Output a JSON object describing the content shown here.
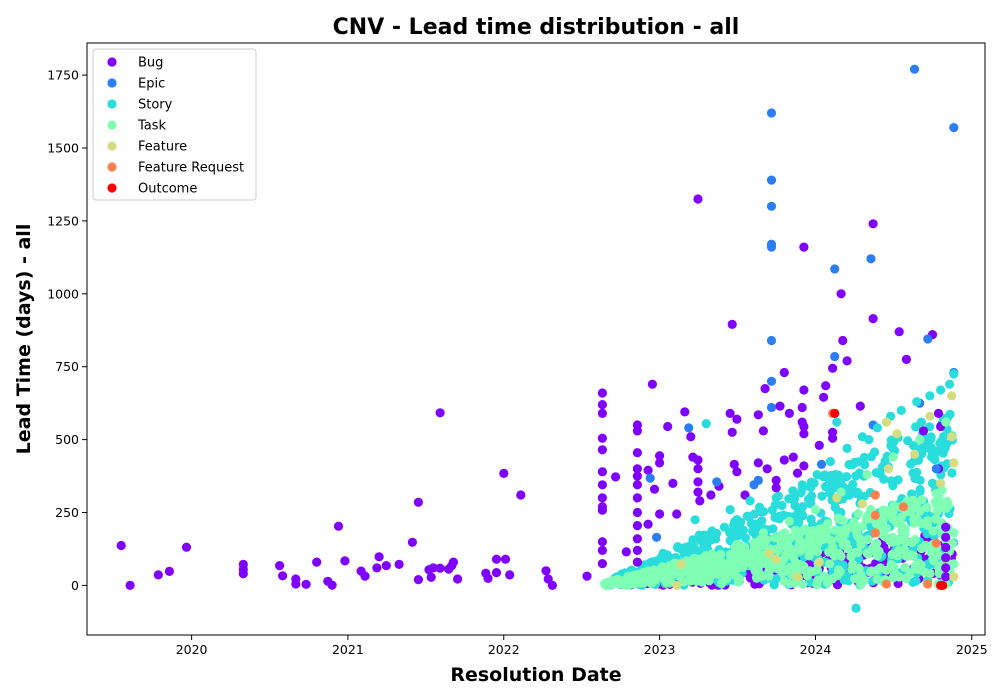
{
  "chart_data": {
    "type": "scatter",
    "title": "CNV - Lead time distribution - all",
    "xlabel": "Resolution Date",
    "ylabel": "Lead Time (days) - all",
    "x_axis_type": "date",
    "xlim": [
      "2019-05-01",
      "2025-02-01"
    ],
    "ylim": [
      -170,
      1860
    ],
    "x_ticks": [
      {
        "value": "2020-01-01",
        "label": "2020"
      },
      {
        "value": "2021-01-01",
        "label": "2021"
      },
      {
        "value": "2022-01-01",
        "label": "2022"
      },
      {
        "value": "2023-01-01",
        "label": "2023"
      },
      {
        "value": "2024-01-01",
        "label": "2024"
      },
      {
        "value": "2025-01-01",
        "label": "2025"
      }
    ],
    "y_ticks": [
      0,
      250,
      500,
      750,
      1000,
      1250,
      1500,
      1750
    ],
    "grid": false,
    "legend": {
      "position": "top-left"
    },
    "series": [
      {
        "name": "Bug",
        "color": "#8000ff",
        "points": [
          [
            "2019-07-20",
            137
          ],
          [
            "2019-08-10",
            0
          ],
          [
            "2019-10-15",
            36
          ],
          [
            "2019-11-10",
            48
          ],
          [
            "2019-12-20",
            131
          ],
          [
            "2020-05-01",
            72
          ],
          [
            "2020-05-01",
            55
          ],
          [
            "2020-05-01",
            40
          ],
          [
            "2020-07-25",
            68
          ],
          [
            "2020-08-01",
            33
          ],
          [
            "2020-09-01",
            22
          ],
          [
            "2020-09-01",
            5
          ],
          [
            "2020-09-25",
            4
          ],
          [
            "2020-10-20",
            80
          ],
          [
            "2020-11-15",
            14
          ],
          [
            "2020-11-25",
            1
          ],
          [
            "2020-12-10",
            203
          ],
          [
            "2020-12-25",
            84
          ],
          [
            "2021-02-01",
            49
          ],
          [
            "2021-02-10",
            32
          ],
          [
            "2021-03-10",
            60
          ],
          [
            "2021-03-15",
            98
          ],
          [
            "2021-04-01",
            68
          ],
          [
            "2021-05-01",
            72
          ],
          [
            "2021-06-01",
            148
          ],
          [
            "2021-06-15",
            285
          ],
          [
            "2021-06-15",
            20
          ],
          [
            "2021-07-10",
            54
          ],
          [
            "2021-07-15",
            28
          ],
          [
            "2021-07-20",
            60
          ],
          [
            "2021-08-05",
            592
          ],
          [
            "2021-08-05",
            59
          ],
          [
            "2021-08-25",
            56
          ],
          [
            "2021-09-01",
            68
          ],
          [
            "2021-09-05",
            80
          ],
          [
            "2021-09-15",
            22
          ],
          [
            "2021-11-20",
            42
          ],
          [
            "2021-11-25",
            24
          ],
          [
            "2021-12-15",
            90
          ],
          [
            "2021-12-15",
            44
          ],
          [
            "2022-01-01",
            384
          ],
          [
            "2022-01-05",
            90
          ],
          [
            "2022-01-15",
            36
          ],
          [
            "2022-02-10",
            310
          ],
          [
            "2022-04-10",
            50
          ],
          [
            "2022-04-15",
            22
          ],
          [
            "2022-04-25",
            0
          ],
          [
            "2022-07-15",
            32
          ],
          [
            "2022-08-20",
            660
          ],
          [
            "2022-08-20",
            620
          ],
          [
            "2022-08-20",
            590
          ],
          [
            "2022-08-20",
            505
          ],
          [
            "2022-08-20",
            465
          ],
          [
            "2022-08-20",
            390
          ],
          [
            "2022-08-20",
            345
          ],
          [
            "2022-08-20",
            300
          ],
          [
            "2022-08-20",
            270
          ],
          [
            "2022-08-20",
            258
          ],
          [
            "2022-08-20",
            150
          ],
          [
            "2022-08-20",
            120
          ],
          [
            "2022-08-20",
            75
          ],
          [
            "2022-09-20",
            372
          ],
          [
            "2022-10-15",
            115
          ],
          [
            "2022-11-10",
            550
          ],
          [
            "2022-11-10",
            530
          ],
          [
            "2022-11-10",
            455
          ],
          [
            "2022-11-10",
            400
          ],
          [
            "2022-11-10",
            375
          ],
          [
            "2022-11-10",
            345
          ],
          [
            "2022-11-10",
            300
          ],
          [
            "2022-11-10",
            250
          ],
          [
            "2022-11-10",
            205
          ],
          [
            "2022-11-10",
            160
          ],
          [
            "2022-11-10",
            120
          ],
          [
            "2022-11-10",
            80
          ],
          [
            "2022-12-05",
            395
          ],
          [
            "2022-12-05",
            210
          ],
          [
            "2022-12-15",
            690
          ],
          [
            "2022-12-20",
            330
          ],
          [
            "2023-01-01",
            445
          ],
          [
            "2023-01-01",
            420
          ],
          [
            "2023-01-01",
            245
          ],
          [
            "2023-01-20",
            545
          ],
          [
            "2023-02-01",
            350
          ],
          [
            "2023-02-10",
            245
          ],
          [
            "2023-03-01",
            595
          ],
          [
            "2023-03-15",
            510
          ],
          [
            "2023-03-20",
            440
          ],
          [
            "2023-04-01",
            1325
          ],
          [
            "2023-04-01",
            430
          ],
          [
            "2023-04-01",
            400
          ],
          [
            "2023-04-01",
            355
          ],
          [
            "2023-04-01",
            320
          ],
          [
            "2023-04-05",
            290
          ],
          [
            "2023-05-01",
            310
          ],
          [
            "2023-05-20",
            340
          ],
          [
            "2023-06-15",
            590
          ],
          [
            "2023-06-20",
            895
          ],
          [
            "2023-06-20",
            525
          ],
          [
            "2023-06-25",
            415
          ],
          [
            "2023-07-01",
            570
          ],
          [
            "2023-07-01",
            390
          ],
          [
            "2023-07-20",
            310
          ],
          [
            "2023-08-20",
            585
          ],
          [
            "2023-08-20",
            420
          ],
          [
            "2023-09-01",
            530
          ],
          [
            "2023-09-05",
            675
          ],
          [
            "2023-09-10",
            400
          ],
          [
            "2023-10-01",
            360
          ],
          [
            "2023-10-01",
            335
          ],
          [
            "2023-10-10",
            615
          ],
          [
            "2023-10-20",
            730
          ],
          [
            "2023-10-20",
            430
          ],
          [
            "2023-11-01",
            590
          ],
          [
            "2023-11-10",
            440
          ],
          [
            "2023-11-20",
            385
          ],
          [
            "2023-12-01",
            610
          ],
          [
            "2023-12-01",
            560
          ],
          [
            "2023-12-05",
            1160
          ],
          [
            "2023-12-05",
            670
          ],
          [
            "2023-12-05",
            545
          ],
          [
            "2023-12-05",
            520
          ],
          [
            "2023-12-05",
            410
          ],
          [
            "2024-01-10",
            480
          ],
          [
            "2024-01-20",
            645
          ],
          [
            "2024-01-25",
            685
          ],
          [
            "2024-02-10",
            745
          ],
          [
            "2024-02-10",
            525
          ],
          [
            "2024-02-10",
            505
          ],
          [
            "2024-03-01",
            1000
          ],
          [
            "2024-03-05",
            840
          ],
          [
            "2024-03-15",
            770
          ],
          [
            "2024-04-15",
            615
          ],
          [
            "2024-05-15",
            1240
          ],
          [
            "2024-05-15",
            915
          ],
          [
            "2024-07-15",
            870
          ],
          [
            "2024-08-01",
            775
          ],
          [
            "2024-09-10",
            530
          ],
          [
            "2024-10-01",
            860
          ],
          [
            "2024-10-15",
            400
          ],
          [
            "2024-10-15",
            590
          ],
          [
            "2024-10-20",
            545
          ],
          [
            "2024-11-01",
            200
          ],
          [
            "2024-11-01",
            165
          ],
          [
            "2024-11-01",
            130
          ],
          [
            "2024-11-01",
            95
          ],
          [
            "2024-11-01",
            60
          ],
          [
            "2024-11-01",
            30
          ]
        ]
      },
      {
        "name": "Epic",
        "color": "#2c7ef7",
        "points": [
          [
            "2022-12-10",
            368
          ],
          [
            "2022-12-25",
            165
          ],
          [
            "2023-03-10",
            540
          ],
          [
            "2023-05-15",
            355
          ],
          [
            "2023-08-10",
            345
          ],
          [
            "2023-08-20",
            360
          ],
          [
            "2023-09-20",
            1620
          ],
          [
            "2023-09-20",
            1390
          ],
          [
            "2023-09-20",
            1300
          ],
          [
            "2023-09-20",
            1170
          ],
          [
            "2023-09-20",
            1160
          ],
          [
            "2023-09-20",
            840
          ],
          [
            "2023-09-20",
            700
          ],
          [
            "2023-09-20",
            610
          ],
          [
            "2024-01-15",
            415
          ],
          [
            "2024-02-15",
            1085
          ],
          [
            "2024-02-15",
            785
          ],
          [
            "2024-05-10",
            1120
          ],
          [
            "2024-05-15",
            550
          ],
          [
            "2024-08-20",
            1770
          ],
          [
            "2024-09-01",
            625
          ],
          [
            "2024-09-20",
            845
          ],
          [
            "2024-10-10",
            400
          ],
          [
            "2024-11-20",
            1570
          ],
          [
            "2024-11-20",
            730
          ]
        ]
      },
      {
        "name": "Story",
        "color": "#2adddd",
        "points": [
          [
            "2023-03-25",
            225
          ],
          [
            "2023-04-20",
            555
          ],
          [
            "2023-06-15",
            260
          ],
          [
            "2023-08-01",
            290
          ],
          [
            "2023-10-01",
            300
          ],
          [
            "2023-12-01",
            345
          ],
          [
            "2024-01-05",
            380
          ],
          [
            "2024-02-05",
            425
          ],
          [
            "2024-03-15",
            470
          ],
          [
            "2024-04-20",
            510
          ],
          [
            "2024-05-25",
            540
          ],
          [
            "2024-06-25",
            580
          ],
          [
            "2024-07-20",
            600
          ],
          [
            "2024-08-25",
            630
          ],
          [
            "2024-09-25",
            650
          ],
          [
            "2024-10-20",
            670
          ],
          [
            "2024-11-10",
            690
          ],
          [
            "2024-11-20",
            725
          ],
          [
            "2024-04-05",
            -78
          ],
          [
            "2024-02-20",
            560
          ],
          [
            "2024-05-05",
            500
          ],
          [
            "2024-09-05",
            560
          ],
          [
            "2024-11-05",
            575
          ]
        ]
      },
      {
        "name": "Task",
        "color": "#80ffb4",
        "points": [
          [
            "2022-09-01",
            0
          ],
          [
            "2022-11-01",
            20
          ],
          [
            "2023-01-10",
            40
          ],
          [
            "2023-03-01",
            70
          ],
          [
            "2023-05-01",
            100
          ],
          [
            "2023-07-01",
            140
          ],
          [
            "2023-09-01",
            180
          ],
          [
            "2023-11-01",
            220
          ],
          [
            "2024-01-01",
            260
          ],
          [
            "2024-03-01",
            320
          ],
          [
            "2024-05-01",
            380
          ],
          [
            "2024-07-01",
            440
          ],
          [
            "2024-09-01",
            500
          ],
          [
            "2024-11-01",
            560
          ],
          [
            "2024-06-01",
            60
          ],
          [
            "2024-08-01",
            100
          ],
          [
            "2024-10-01",
            140
          ],
          [
            "2024-11-20",
            180
          ]
        ]
      },
      {
        "name": "Feature",
        "color": "#d4dd80",
        "points": [
          [
            "2023-02-10",
            0
          ],
          [
            "2023-02-20",
            72
          ],
          [
            "2023-09-15",
            110
          ],
          [
            "2023-10-01",
            90
          ],
          [
            "2023-11-20",
            30
          ],
          [
            "2024-01-10",
            80
          ],
          [
            "2024-02-20",
            300
          ],
          [
            "2024-04-20",
            280
          ],
          [
            "2024-06-15",
            560
          ],
          [
            "2024-06-20",
            400
          ],
          [
            "2024-07-10",
            520
          ],
          [
            "2024-08-20",
            450
          ],
          [
            "2024-09-25",
            580
          ],
          [
            "2024-10-20",
            350
          ],
          [
            "2024-11-15",
            650
          ],
          [
            "2024-11-15",
            510
          ],
          [
            "2024-11-20",
            420
          ],
          [
            "2024-11-20",
            30
          ]
        ]
      },
      {
        "name": "Feature Request",
        "color": "#ff7f4f",
        "points": [
          [
            "2024-02-10",
            590
          ],
          [
            "2024-05-20",
            310
          ],
          [
            "2024-05-20",
            240
          ],
          [
            "2024-05-20",
            180
          ],
          [
            "2024-06-15",
            5
          ],
          [
            "2024-07-25",
            270
          ],
          [
            "2024-09-20",
            5
          ],
          [
            "2024-10-10",
            145
          ]
        ]
      },
      {
        "name": "Outcome",
        "color": "#ff0000",
        "points": [
          [
            "2024-02-15",
            590
          ],
          [
            "2024-10-20",
            0
          ],
          [
            "2024-10-25",
            0
          ]
        ]
      }
    ]
  }
}
